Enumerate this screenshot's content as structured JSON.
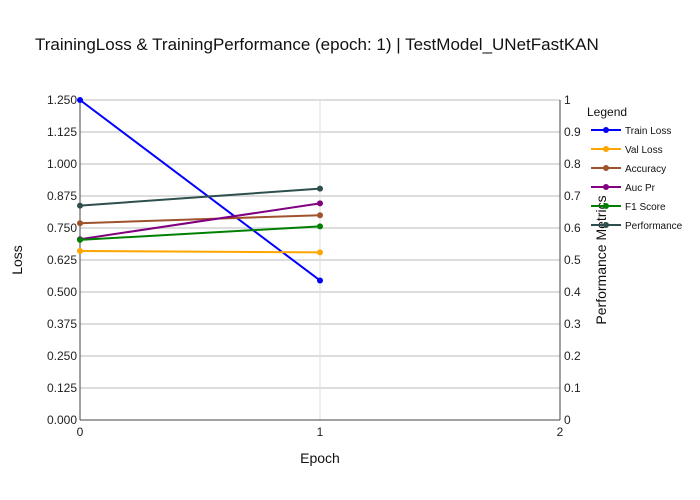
{
  "chart_data": {
    "type": "line",
    "title": "TrainingLoss & TrainingPerformance (epoch: 1) | TestModel_UNetFastKAN",
    "xlabel": "Epoch",
    "ylabel": "Loss",
    "y2label": "Performance Metrics",
    "x": [
      0,
      1
    ],
    "xlim": [
      0,
      2
    ],
    "xticks": [
      "0",
      "1",
      "2"
    ],
    "ylim": [
      0,
      1.25
    ],
    "yticks": [
      "0.000",
      "0.125",
      "0.250",
      "0.375",
      "0.500",
      "0.625",
      "0.750",
      "0.875",
      "1.000",
      "1.125",
      "1.250"
    ],
    "y2lim": [
      0,
      1
    ],
    "y2ticks": [
      "0",
      "0.1",
      "0.2",
      "0.3",
      "0.4",
      "0.5",
      "0.6",
      "0.7",
      "0.8",
      "0.9",
      "1"
    ],
    "grid": true,
    "legend_title": "Legend",
    "legend_position": "right",
    "series": [
      {
        "name": "Train Loss",
        "axis": "y",
        "color": "#0000ff",
        "values": [
          1.25,
          0.545
        ]
      },
      {
        "name": "Val Loss",
        "axis": "y",
        "color": "#ffa500",
        "values": [
          0.66,
          0.655
        ]
      },
      {
        "name": "Accuracy",
        "axis": "y2",
        "color": "#a0522d",
        "values": [
          0.615,
          0.64
        ]
      },
      {
        "name": "Auc Pr",
        "axis": "y2",
        "color": "#800080",
        "values": [
          0.565,
          0.677
        ]
      },
      {
        "name": "F1 Score",
        "axis": "y2",
        "color": "#008000",
        "values": [
          0.563,
          0.605
        ]
      },
      {
        "name": "Performance",
        "axis": "y2",
        "color": "#2f4f4f",
        "values": [
          0.67,
          0.723
        ]
      }
    ]
  }
}
